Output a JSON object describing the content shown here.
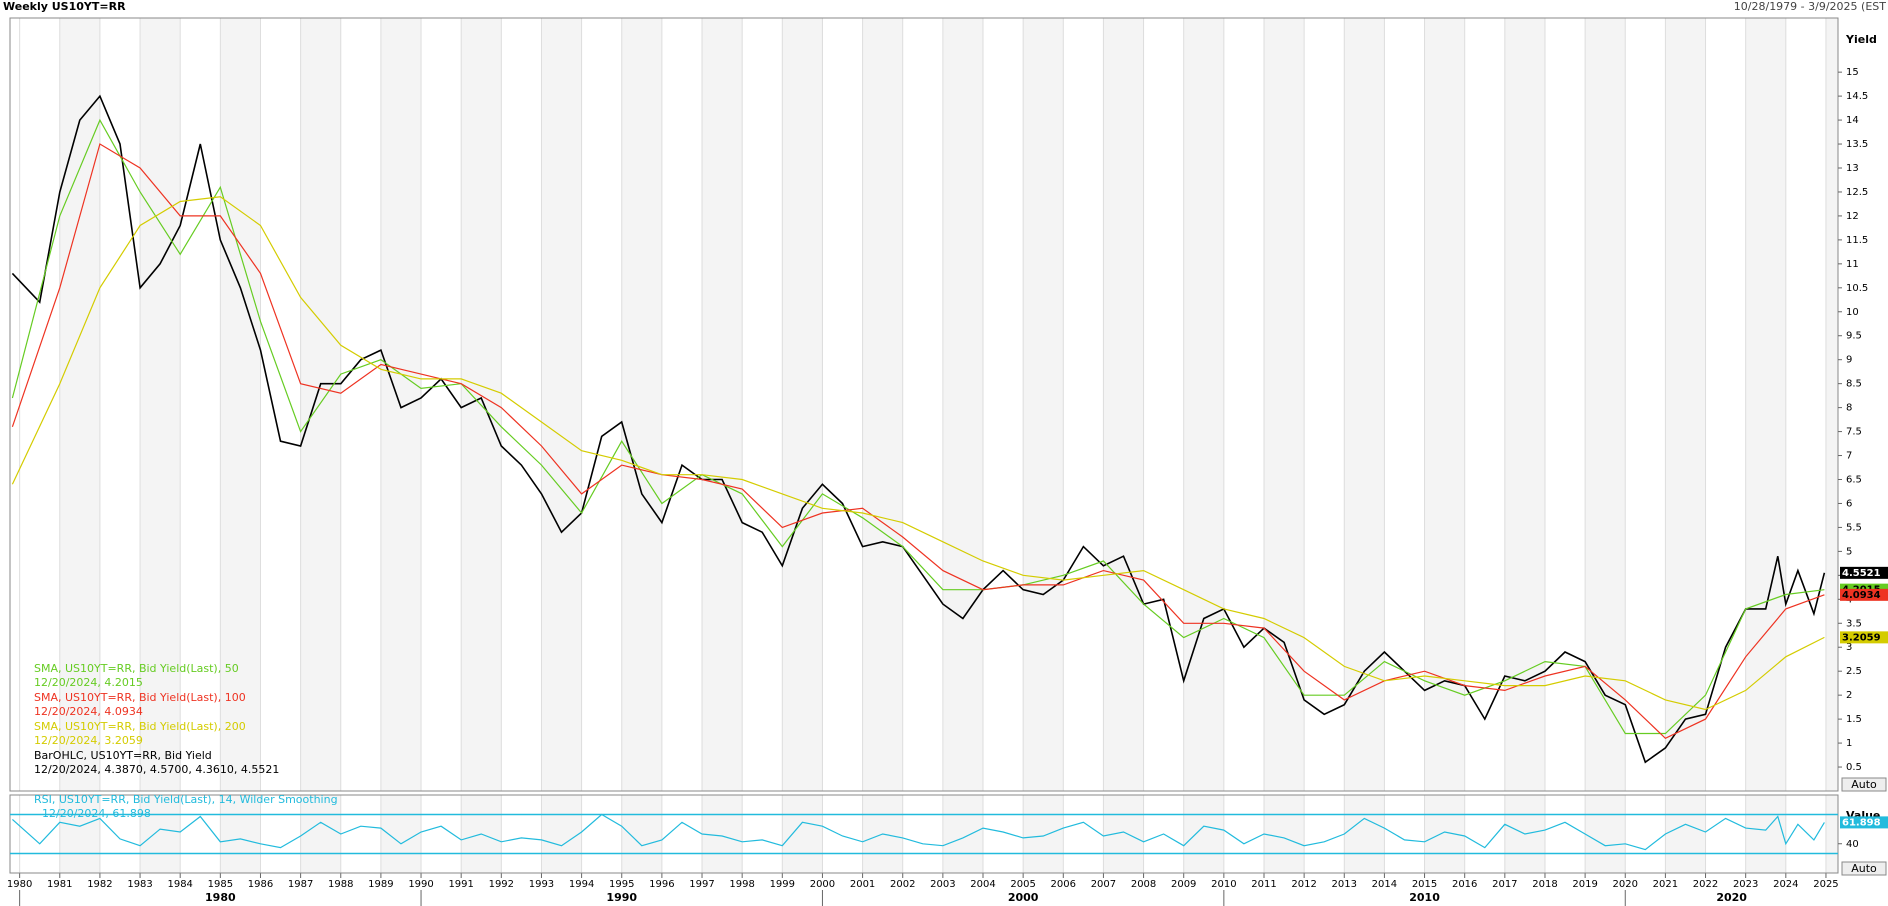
{
  "chart_data": [
    {
      "type": "line",
      "title": "Weekly US10YT=RR",
      "subtitle": "10/28/1979 - 3/9/2025 (EST",
      "y_label": "Yield",
      "auto_label": "Auto",
      "xlim": [
        1979.76,
        2025.3
      ],
      "xticks": [
        1980,
        1981,
        1982,
        1983,
        1984,
        1985,
        1986,
        1987,
        1988,
        1989,
        1990,
        1991,
        1992,
        1993,
        1994,
        1995,
        1996,
        1997,
        1998,
        1999,
        2000,
        2001,
        2002,
        2003,
        2004,
        2005,
        2006,
        2007,
        2008,
        2009,
        2010,
        2011,
        2012,
        2013,
        2014,
        2015,
        2016,
        2017,
        2018,
        2019,
        2020,
        2021,
        2022,
        2023,
        2024,
        2025
      ],
      "decade_ticks": [
        1980,
        1990,
        2000,
        2010,
        2020
      ],
      "ylim": [
        0,
        16.13
      ],
      "yticks": [
        0.5,
        1,
        1.5,
        2,
        2.5,
        3,
        3.5,
        4,
        4.5,
        5,
        5.5,
        6,
        6.5,
        7,
        7.5,
        8,
        8.5,
        9,
        9.5,
        10,
        10.5,
        11,
        11.5,
        12,
        12.5,
        13,
        13.5,
        14,
        14.5,
        15
      ],
      "grid": true,
      "series": [
        {
          "name": "BarOHLC, US10YT=RR, Bid Yield",
          "legend_value": "12/20/2024, 4.3870, 4.5700, 4.3610, 4.5521",
          "color": "#000000",
          "x": [
            1979.82,
            1980.5,
            1981,
            1981.5,
            1982,
            1982.5,
            1983,
            1983.5,
            1984,
            1984.5,
            1985,
            1985.5,
            1986,
            1986.5,
            1987,
            1987.5,
            1988,
            1988.5,
            1989,
            1989.5,
            1990,
            1990.5,
            1991,
            1991.5,
            1992,
            1992.5,
            1993,
            1993.5,
            1994,
            1994.5,
            1995,
            1995.5,
            1996,
            1996.5,
            1997,
            1997.5,
            1998,
            1998.5,
            1999,
            1999.5,
            2000,
            2000.5,
            2001,
            2001.5,
            2002,
            2002.5,
            2003,
            2003.5,
            2004,
            2004.5,
            2005,
            2005.5,
            2006,
            2006.5,
            2007,
            2007.5,
            2008,
            2008.5,
            2009,
            2009.5,
            2010,
            2010.5,
            2011,
            2011.5,
            2012,
            2012.5,
            2013,
            2013.5,
            2014,
            2014.5,
            2015,
            2015.5,
            2016,
            2016.5,
            2017,
            2017.5,
            2018,
            2018.5,
            2019,
            2019.5,
            2020,
            2020.5,
            2021,
            2021.5,
            2022,
            2022.5,
            2023,
            2023.5,
            2023.8,
            2024,
            2024.3,
            2024.7,
            2024.96
          ],
          "values": [
            10.8,
            10.2,
            12.5,
            14,
            14.5,
            13.5,
            10.5,
            11,
            11.8,
            13.5,
            11.5,
            10.5,
            9.2,
            7.3,
            7.2,
            8.5,
            8.5,
            9,
            9.2,
            8,
            8.2,
            8.6,
            8,
            8.2,
            7.2,
            6.8,
            6.2,
            5.4,
            5.8,
            7.4,
            7.7,
            6.2,
            5.6,
            6.8,
            6.5,
            6.5,
            5.6,
            5.4,
            4.7,
            5.9,
            6.4,
            6,
            5.1,
            5.2,
            5.1,
            4.5,
            3.9,
            3.6,
            4.2,
            4.6,
            4.2,
            4.1,
            4.4,
            5.1,
            4.7,
            4.9,
            3.9,
            4,
            2.3,
            3.6,
            3.8,
            3,
            3.4,
            3.1,
            1.9,
            1.6,
            1.8,
            2.5,
            2.9,
            2.5,
            2.1,
            2.3,
            2.2,
            1.5,
            2.4,
            2.3,
            2.5,
            2.9,
            2.7,
            2,
            1.8,
            0.6,
            0.9,
            1.5,
            1.6,
            3,
            3.8,
            3.8,
            4.9,
            3.9,
            4.6,
            3.7,
            4.5521
          ]
        },
        {
          "name": "SMA, US10YT=RR, Bid Yield(Last),  50",
          "legend_value": "12/20/2024, 4.2015",
          "color": "#66cc22",
          "x": [
            1979.82,
            1981,
            1982,
            1983,
            1984,
            1985,
            1986,
            1987,
            1988,
            1989,
            1990,
            1991,
            1992,
            1993,
            1994,
            1995,
            1996,
            1997,
            1998,
            1999,
            2000,
            2001,
            2002,
            2003,
            2004,
            2005,
            2006,
            2007,
            2008,
            2009,
            2010,
            2011,
            2012,
            2013,
            2014,
            2015,
            2016,
            2017,
            2018,
            2019,
            2020,
            2021,
            2022,
            2023,
            2024,
            2024.96
          ],
          "values": [
            8.2,
            12,
            14,
            12.5,
            11.2,
            12.6,
            9.8,
            7.5,
            8.7,
            9,
            8.4,
            8.5,
            7.6,
            6.8,
            5.8,
            7.3,
            6,
            6.6,
            6.2,
            5.1,
            6.2,
            5.7,
            5.1,
            4.2,
            4.2,
            4.3,
            4.5,
            4.8,
            3.9,
            3.2,
            3.6,
            3.2,
            2,
            2,
            2.7,
            2.3,
            2,
            2.3,
            2.7,
            2.6,
            1.2,
            1.2,
            2,
            3.8,
            4.1,
            4.2015
          ]
        },
        {
          "name": "SMA, US10YT=RR, Bid Yield(Last),  100",
          "legend_value": "12/20/2024, 4.0934",
          "color": "#ee3322",
          "x": [
            1979.82,
            1981,
            1982,
            1983,
            1984,
            1985,
            1986,
            1987,
            1988,
            1989,
            1990,
            1991,
            1992,
            1993,
            1994,
            1995,
            1996,
            1997,
            1998,
            1999,
            2000,
            2001,
            2002,
            2003,
            2004,
            2005,
            2006,
            2007,
            2008,
            2009,
            2010,
            2011,
            2012,
            2013,
            2014,
            2015,
            2016,
            2017,
            2018,
            2019,
            2020,
            2021,
            2022,
            2023,
            2024,
            2024.96
          ],
          "values": [
            7.6,
            10.5,
            13.5,
            13,
            12,
            12,
            10.8,
            8.5,
            8.3,
            8.9,
            8.7,
            8.5,
            8,
            7.2,
            6.2,
            6.8,
            6.6,
            6.5,
            6.3,
            5.5,
            5.8,
            5.9,
            5.3,
            4.6,
            4.2,
            4.3,
            4.3,
            4.6,
            4.4,
            3.5,
            3.5,
            3.4,
            2.5,
            1.9,
            2.3,
            2.5,
            2.2,
            2.1,
            2.4,
            2.6,
            1.9,
            1.1,
            1.5,
            2.8,
            3.8,
            4.0934
          ]
        },
        {
          "name": "SMA, US10YT=RR, Bid Yield(Last),  200",
          "legend_value": "12/20/2024, 3.2059",
          "color": "#d4cc00",
          "x": [
            1979.82,
            1981,
            1982,
            1983,
            1984,
            1985,
            1986,
            1987,
            1988,
            1989,
            1990,
            1991,
            1992,
            1993,
            1994,
            1995,
            1996,
            1997,
            1998,
            1999,
            2000,
            2001,
            2002,
            2003,
            2004,
            2005,
            2006,
            2007,
            2008,
            2009,
            2010,
            2011,
            2012,
            2013,
            2014,
            2015,
            2016,
            2017,
            2018,
            2019,
            2020,
            2021,
            2022,
            2023,
            2024,
            2024.96
          ],
          "values": [
            6.4,
            8.5,
            10.5,
            11.8,
            12.3,
            12.4,
            11.8,
            10.3,
            9.3,
            8.8,
            8.6,
            8.6,
            8.3,
            7.7,
            7.1,
            6.9,
            6.6,
            6.6,
            6.5,
            6.2,
            5.9,
            5.8,
            5.6,
            5.2,
            4.8,
            4.5,
            4.4,
            4.5,
            4.6,
            4.2,
            3.8,
            3.6,
            3.2,
            2.6,
            2.3,
            2.4,
            2.3,
            2.2,
            2.2,
            2.4,
            2.3,
            1.9,
            1.7,
            2.1,
            2.8,
            3.2059
          ]
        }
      ]
    },
    {
      "type": "line",
      "y_label": "Value",
      "auto_label": "Auto",
      "xlim": [
        1979.76,
        2025.3
      ],
      "ylim": [
        10,
        90
      ],
      "yticks": [
        40
      ],
      "levels": [
        30,
        70
      ],
      "series": [
        {
          "name": "RSI, US10YT=RR, Bid Yield(Last),  14, Wilder Smoothing",
          "legend_value": "12/20/2024, 61.898",
          "color": "#22bbdd",
          "x": [
            1979.82,
            1980.5,
            1981,
            1981.5,
            1982,
            1982.5,
            1983,
            1983.5,
            1984,
            1984.5,
            1985,
            1985.5,
            1986,
            1986.5,
            1987,
            1987.5,
            1988,
            1988.5,
            1989,
            1989.5,
            1990,
            1990.5,
            1991,
            1991.5,
            1992,
            1992.5,
            1993,
            1993.5,
            1994,
            1994.5,
            1995,
            1995.5,
            1996,
            1996.5,
            1997,
            1997.5,
            1998,
            1998.5,
            1999,
            1999.5,
            2000,
            2000.5,
            2001,
            2001.5,
            2002,
            2002.5,
            2003,
            2003.5,
            2004,
            2004.5,
            2005,
            2005.5,
            2006,
            2006.5,
            2007,
            2007.5,
            2008,
            2008.5,
            2009,
            2009.5,
            2010,
            2010.5,
            2011,
            2011.5,
            2012,
            2012.5,
            2013,
            2013.5,
            2014,
            2014.5,
            2015,
            2015.5,
            2016,
            2016.5,
            2017,
            2017.5,
            2018,
            2018.5,
            2019,
            2019.5,
            2020,
            2020.5,
            2021,
            2021.5,
            2022,
            2022.5,
            2023,
            2023.5,
            2023.8,
            2024,
            2024.3,
            2024.7,
            2024.96
          ],
          "values": [
            65,
            40,
            62,
            58,
            66,
            45,
            38,
            55,
            52,
            68,
            42,
            45,
            40,
            36,
            48,
            62,
            50,
            58,
            56,
            40,
            52,
            58,
            44,
            50,
            42,
            46,
            44,
            38,
            52,
            70,
            58,
            38,
            44,
            62,
            50,
            48,
            42,
            44,
            38,
            62,
            58,
            48,
            42,
            50,
            46,
            40,
            38,
            46,
            56,
            52,
            46,
            48,
            56,
            62,
            48,
            52,
            42,
            50,
            38,
            58,
            54,
            40,
            50,
            46,
            38,
            42,
            50,
            66,
            56,
            44,
            42,
            52,
            48,
            36,
            60,
            50,
            54,
            62,
            50,
            38,
            40,
            34,
            50,
            60,
            52,
            66,
            56,
            54,
            68,
            40,
            60,
            44,
            61.898
          ]
        }
      ]
    }
  ]
}
